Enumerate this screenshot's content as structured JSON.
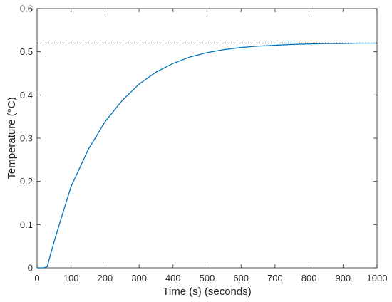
{
  "chart_data": {
    "type": "line",
    "xlabel": "Time (s) (seconds)",
    "ylabel": "Temperature (°C)",
    "xlim": [
      0,
      1000
    ],
    "ylim": [
      0,
      0.6
    ],
    "x_ticks": [
      "0",
      "100",
      "200",
      "300",
      "400",
      "500",
      "600",
      "700",
      "800",
      "900",
      "1000"
    ],
    "y_ticks": [
      "0",
      "0.1",
      "0.2",
      "0.3",
      "0.4",
      "0.5",
      "0.6"
    ],
    "grid": false,
    "series": [
      {
        "color": "#0072BD",
        "style": "solid",
        "x": [
          0,
          10,
          20,
          30,
          35,
          50,
          75,
          100,
          150,
          200,
          250,
          300,
          350,
          400,
          450,
          500,
          550,
          600,
          650,
          700,
          750,
          800,
          850,
          900,
          950,
          1000
        ],
        "y": [
          0,
          0,
          0,
          0.003,
          0.018,
          0.06,
          0.125,
          0.188,
          0.273,
          0.338,
          0.387,
          0.425,
          0.453,
          0.473,
          0.488,
          0.498,
          0.505,
          0.51,
          0.513,
          0.515,
          0.517,
          0.518,
          0.519,
          0.519,
          0.52,
          0.52
        ]
      },
      {
        "color": "#262626",
        "style": "dotted",
        "x": [
          0,
          1000
        ],
        "y": [
          0.52,
          0.52
        ]
      }
    ]
  }
}
